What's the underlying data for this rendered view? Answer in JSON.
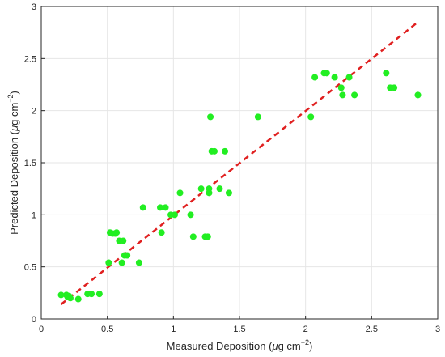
{
  "chart_data": {
    "type": "scatter",
    "xlabel": {
      "pre": "Measured Deposition (",
      "mu": "μ",
      "mid": "g cm",
      "exp": "−2",
      "post": ")"
    },
    "ylabel": {
      "pre": "Predicted Deposition (",
      "mu": "μ",
      "mid": "g cm",
      "exp": "−2",
      "post": ")"
    },
    "xlim": [
      0,
      3
    ],
    "ylim": [
      0,
      3
    ],
    "xticks": [
      0,
      0.5,
      1,
      1.5,
      2,
      2.5,
      3
    ],
    "xtick_labels": [
      "0",
      "0.5",
      "1",
      "1.5",
      "2",
      "2.5",
      "3"
    ],
    "yticks": [
      0,
      0.5,
      1,
      1.5,
      2,
      2.5,
      3
    ],
    "ytick_labels": [
      "0",
      "0.5",
      "1",
      "1.5",
      "2",
      "2.5",
      "3"
    ],
    "grid": true,
    "marker_color": "#22ee22",
    "line_color": "#e02020",
    "fit_line": {
      "x": [
        0.15,
        2.85
      ],
      "y": [
        0.14,
        2.85
      ],
      "style": "dashed"
    },
    "points": [
      [
        0.15,
        0.23
      ],
      [
        0.19,
        0.23
      ],
      [
        0.2,
        0.21
      ],
      [
        0.21,
        0.22
      ],
      [
        0.22,
        0.2
      ],
      [
        0.28,
        0.19
      ],
      [
        0.35,
        0.24
      ],
      [
        0.38,
        0.24
      ],
      [
        0.44,
        0.24
      ],
      [
        0.51,
        0.54
      ],
      [
        0.52,
        0.83
      ],
      [
        0.54,
        0.82
      ],
      [
        0.56,
        0.82
      ],
      [
        0.57,
        0.83
      ],
      [
        0.59,
        0.75
      ],
      [
        0.61,
        0.54
      ],
      [
        0.62,
        0.75
      ],
      [
        0.63,
        0.61
      ],
      [
        0.65,
        0.61
      ],
      [
        0.74,
        0.54
      ],
      [
        0.77,
        1.07
      ],
      [
        0.9,
        1.07
      ],
      [
        0.91,
        0.83
      ],
      [
        0.94,
        1.07
      ],
      [
        0.98,
        1.0
      ],
      [
        1.01,
        1.0
      ],
      [
        1.05,
        1.21
      ],
      [
        1.13,
        1.0
      ],
      [
        1.15,
        0.79
      ],
      [
        1.21,
        1.25
      ],
      [
        1.24,
        0.79
      ],
      [
        1.26,
        0.79
      ],
      [
        1.27,
        1.21
      ],
      [
        1.27,
        1.25
      ],
      [
        1.28,
        1.94
      ],
      [
        1.29,
        1.61
      ],
      [
        1.31,
        1.61
      ],
      [
        1.35,
        1.25
      ],
      [
        1.39,
        1.61
      ],
      [
        1.42,
        1.21
      ],
      [
        1.64,
        1.94
      ],
      [
        2.04,
        1.94
      ],
      [
        2.07,
        2.32
      ],
      [
        2.14,
        2.36
      ],
      [
        2.16,
        2.36
      ],
      [
        2.22,
        2.32
      ],
      [
        2.27,
        2.22
      ],
      [
        2.28,
        2.15
      ],
      [
        2.33,
        2.32
      ],
      [
        2.37,
        2.15
      ],
      [
        2.61,
        2.36
      ],
      [
        2.64,
        2.22
      ],
      [
        2.67,
        2.22
      ],
      [
        2.85,
        2.15
      ]
    ]
  }
}
